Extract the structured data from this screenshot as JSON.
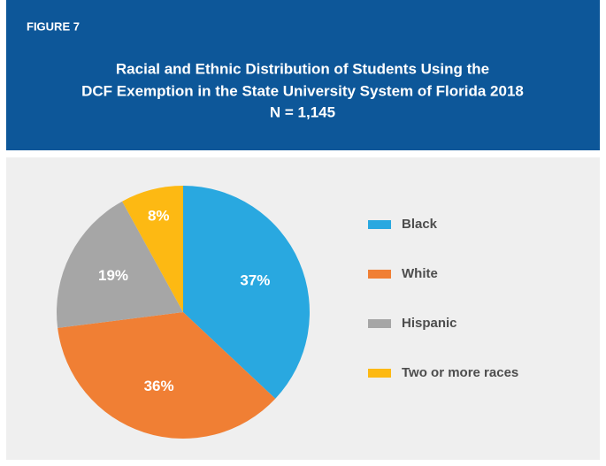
{
  "chart_data": {
    "type": "pie",
    "figure_label": "FIGURE 7",
    "title": [
      "Racial and Ethnic Distribution of Students Using the",
      "DCF Exemption in the State University System of Florida 2018",
      "N = 1,145"
    ],
    "categories": [
      "Black",
      "White",
      "Hispanic",
      "Two or more races"
    ],
    "values": [
      37,
      36,
      19,
      8
    ],
    "value_labels": [
      "37%",
      "36%",
      "19%",
      "8%"
    ],
    "colors": [
      "#29a8e0",
      "#f07f34",
      "#a6a6a6",
      "#fdb913"
    ]
  }
}
